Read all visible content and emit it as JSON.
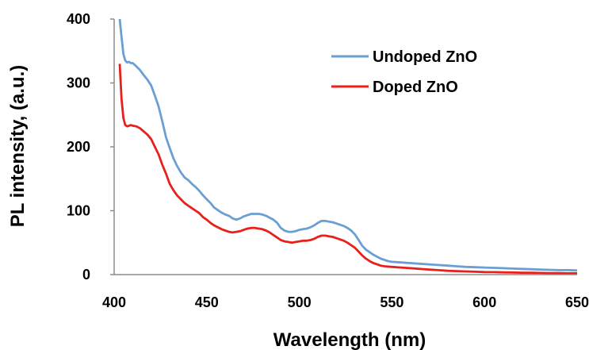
{
  "chart_data": {
    "type": "line",
    "xlabel": "Wavelength (nm)",
    "ylabel": "PL intensity, (a.u.)",
    "xlim": [
      400,
      650
    ],
    "ylim": [
      0,
      400
    ],
    "xticks": [
      "400",
      "450",
      "500",
      "550",
      "600",
      "650"
    ],
    "yticks": [
      "0",
      "100",
      "200",
      "300",
      "400"
    ],
    "grid": false,
    "legend_position": "top-right",
    "series": [
      {
        "name": "Undoped ZnO",
        "color": "#6a9fd4",
        "x": [
          403,
          404,
          405,
          406,
          407,
          408,
          409,
          410,
          412,
          414,
          416,
          418,
          420,
          422,
          424,
          426,
          428,
          430,
          432,
          434,
          436,
          438,
          440,
          442,
          444,
          446,
          448,
          450,
          452,
          454,
          456,
          458,
          460,
          462,
          464,
          466,
          468,
          470,
          472,
          474,
          476,
          478,
          480,
          482,
          484,
          486,
          488,
          490,
          492,
          494,
          496,
          498,
          500,
          502,
          504,
          506,
          508,
          510,
          512,
          514,
          516,
          518,
          520,
          522,
          524,
          526,
          528,
          530,
          532,
          534,
          536,
          538,
          540,
          542,
          544,
          546,
          548,
          550,
          555,
          560,
          565,
          570,
          575,
          580,
          585,
          590,
          595,
          600,
          605,
          610,
          615,
          620,
          625,
          630,
          635,
          640,
          645,
          650
        ],
        "values": [
          400,
          372,
          345,
          335,
          332,
          333,
          331,
          331,
          326,
          320,
          312,
          305,
          296,
          280,
          263,
          240,
          215,
          198,
          182,
          170,
          160,
          152,
          148,
          142,
          137,
          131,
          124,
          118,
          112,
          105,
          101,
          97,
          94,
          92,
          88,
          86,
          88,
          91,
          93,
          95,
          95,
          95,
          94,
          92,
          89,
          86,
          81,
          73,
          69,
          67,
          67,
          68,
          70,
          71,
          72,
          74,
          77,
          81,
          84,
          84,
          83,
          82,
          80,
          78,
          76,
          73,
          69,
          63,
          54,
          45,
          39,
          35,
          31,
          28,
          25,
          23,
          21,
          20,
          19,
          18,
          17,
          16,
          15,
          14,
          13,
          12,
          11.5,
          11,
          10.5,
          10,
          9.5,
          9,
          8.5,
          8,
          7.5,
          7,
          7,
          6.5
        ]
      },
      {
        "name": "Doped ZnO",
        "color": "#e8201c",
        "x": [
          403,
          404,
          405,
          406,
          407,
          408,
          409,
          410,
          412,
          414,
          416,
          418,
          420,
          422,
          424,
          426,
          428,
          430,
          432,
          434,
          436,
          438,
          440,
          442,
          444,
          446,
          448,
          450,
          452,
          454,
          456,
          458,
          460,
          462,
          464,
          466,
          468,
          470,
          472,
          474,
          476,
          478,
          480,
          482,
          484,
          486,
          488,
          490,
          492,
          494,
          496,
          498,
          500,
          502,
          504,
          506,
          508,
          510,
          512,
          514,
          516,
          518,
          520,
          522,
          524,
          526,
          528,
          530,
          532,
          534,
          536,
          538,
          540,
          542,
          544,
          546,
          548,
          550,
          555,
          560,
          565,
          570,
          575,
          580,
          585,
          590,
          595,
          600,
          605,
          610,
          615,
          620,
          625,
          630,
          635,
          640,
          645,
          650
        ],
        "values": [
          330,
          275,
          245,
          234,
          232,
          233,
          234,
          233,
          232,
          229,
          224,
          219,
          212,
          200,
          188,
          172,
          158,
          142,
          132,
          124,
          118,
          112,
          108,
          104,
          100,
          96,
          90,
          86,
          81,
          77,
          74,
          71,
          69,
          67,
          66,
          67,
          68,
          70,
          72,
          73,
          73,
          72,
          71,
          69,
          66,
          62,
          58,
          54,
          52,
          51,
          50,
          51,
          52,
          53,
          53,
          54,
          56,
          59,
          61,
          61,
          60,
          59,
          57,
          55,
          53,
          50,
          46,
          42,
          36,
          30,
          25,
          21,
          18,
          16,
          14,
          13,
          12.5,
          12,
          11,
          10,
          9,
          8,
          7,
          6,
          5.5,
          5,
          4.5,
          4,
          3.8,
          3.5,
          3.3,
          3,
          2.8,
          2.6,
          2.4,
          2.2,
          2,
          2
        ]
      }
    ]
  }
}
